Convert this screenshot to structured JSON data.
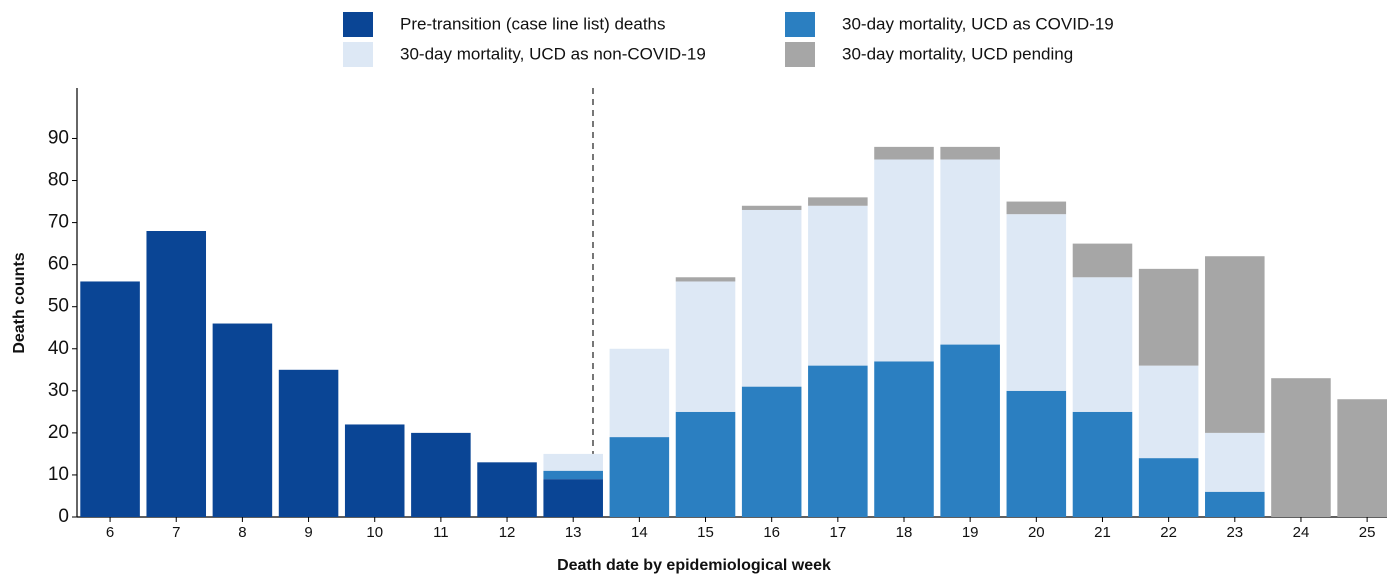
{
  "chart_data": {
    "type": "stacked_bar",
    "x_label": "Death date by epidemiological week",
    "y_label": "Death counts",
    "categories": [
      "6",
      "7",
      "8",
      "9",
      "10",
      "11",
      "12",
      "13",
      "14",
      "15",
      "16",
      "17",
      "18",
      "19",
      "20",
      "21",
      "22",
      "23",
      "24",
      "25"
    ],
    "series": [
      {
        "name": "Pre-transition (case line list) deaths",
        "color": "#0a4595",
        "values": [
          56,
          68,
          46,
          35,
          22,
          20,
          13,
          9,
          0,
          0,
          0,
          0,
          0,
          0,
          0,
          0,
          0,
          0,
          0,
          0
        ]
      },
      {
        "name": "30-day mortality, UCD as COVID-19",
        "color": "#2b7fc1",
        "values": [
          0,
          0,
          0,
          0,
          0,
          0,
          0,
          2,
          19,
          25,
          31,
          36,
          37,
          41,
          30,
          25,
          14,
          6,
          0,
          0
        ]
      },
      {
        "name": "30-day mortality, UCD as non-COVID-19",
        "color": "#dde8f5",
        "values": [
          0,
          0,
          0,
          0,
          0,
          0,
          0,
          4,
          21,
          31,
          42,
          38,
          48,
          44,
          42,
          32,
          22,
          14,
          0,
          0
        ]
      },
      {
        "name": "30-day mortality, UCD pending",
        "color": "#a6a6a6",
        "values": [
          0,
          0,
          0,
          0,
          0,
          0,
          0,
          0,
          0,
          1,
          1,
          2,
          3,
          3,
          3,
          8,
          23,
          42,
          33,
          28
        ]
      }
    ],
    "ylim": [
      0,
      102
    ],
    "yticks": [
      0,
      10,
      20,
      30,
      40,
      50,
      60,
      70,
      80,
      90
    ]
  }
}
